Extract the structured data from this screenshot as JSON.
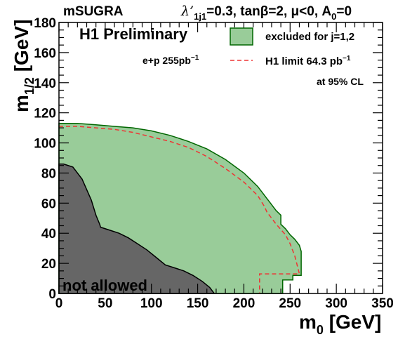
{
  "header": {
    "left": "mSUGRA",
    "lambda": "λ’",
    "lambda_sub": "1j1",
    "params": "=0.3, tanβ=2, μ<0, A",
    "a_sub": "0",
    "a_val": "=0"
  },
  "chart_data": {
    "type": "area",
    "title": "H1 Preliminary",
    "xlabel": {
      "main": "m",
      "sub": "0",
      "unit": " [GeV]"
    },
    "ylabel": {
      "main": "m",
      "sub": "1/2",
      "unit": " [GeV]"
    },
    "xlim": [
      0,
      350
    ],
    "ylim": [
      0,
      180
    ],
    "x_ticks": [
      "0",
      "50",
      "100",
      "150",
      "200",
      "250",
      "300",
      "350"
    ],
    "y_ticks": [
      "0",
      "20",
      "40",
      "60",
      "80",
      "100",
      "120",
      "140",
      "160",
      "180"
    ],
    "lumi_label": "e+p 255pb",
    "lumi_sup": "−1",
    "cl_label": "at 95% CL",
    "legend": [
      {
        "label": "excluded for j=1,2",
        "color": "#99cc99",
        "edge": "#006600"
      },
      {
        "label": "H1 limit 64.3 pb",
        "label_sup": "−1",
        "color": "#ee3333"
      }
    ],
    "not_allowed_label": "not allowed",
    "colors": {
      "excluded_fill": "#99cc99",
      "excluded_edge": "#006600",
      "limit_line": "#ee3333",
      "not_allowed": "#666666"
    },
    "excluded_region": [
      [
        0,
        0
      ],
      [
        0,
        113
      ],
      [
        20,
        113
      ],
      [
        40,
        112
      ],
      [
        60,
        111
      ],
      [
        80,
        110
      ],
      [
        100,
        108
      ],
      [
        120,
        105
      ],
      [
        140,
        101
      ],
      [
        160,
        96
      ],
      [
        180,
        89
      ],
      [
        200,
        80
      ],
      [
        215,
        71
      ],
      [
        225,
        63
      ],
      [
        235,
        55
      ],
      [
        240,
        52
      ],
      [
        240,
        46
      ],
      [
        245,
        43
      ],
      [
        250,
        39
      ],
      [
        255,
        36
      ],
      [
        260,
        32
      ],
      [
        262,
        28
      ],
      [
        262,
        12
      ],
      [
        253,
        12
      ],
      [
        253,
        9
      ],
      [
        242,
        9
      ],
      [
        242,
        0
      ]
    ],
    "h1_limit_643pb": [
      [
        0,
        111
      ],
      [
        20,
        111
      ],
      [
        40,
        110
      ],
      [
        60,
        109
      ],
      [
        80,
        107
      ],
      [
        100,
        104
      ],
      [
        120,
        101
      ],
      [
        140,
        97
      ],
      [
        160,
        91
      ],
      [
        180,
        83
      ],
      [
        200,
        74
      ],
      [
        215,
        65
      ],
      [
        222,
        58
      ],
      [
        225,
        54
      ],
      [
        235,
        46
      ],
      [
        245,
        39
      ],
      [
        250,
        33
      ],
      [
        255,
        25
      ],
      [
        258,
        18
      ],
      [
        260,
        13
      ],
      [
        217,
        13
      ],
      [
        217,
        0
      ]
    ],
    "not_allowed_region": [
      [
        0,
        0
      ],
      [
        0,
        86
      ],
      [
        5,
        86
      ],
      [
        15,
        84
      ],
      [
        25,
        76
      ],
      [
        35,
        62
      ],
      [
        40,
        52
      ],
      [
        44,
        46
      ],
      [
        45,
        44
      ],
      [
        55,
        42
      ],
      [
        65,
        40
      ],
      [
        75,
        37
      ],
      [
        85,
        33
      ],
      [
        95,
        29
      ],
      [
        105,
        24
      ],
      [
        115,
        19
      ],
      [
        125,
        17
      ],
      [
        135,
        15
      ],
      [
        145,
        12
      ],
      [
        155,
        8
      ],
      [
        163,
        4
      ],
      [
        168,
        0
      ]
    ]
  }
}
